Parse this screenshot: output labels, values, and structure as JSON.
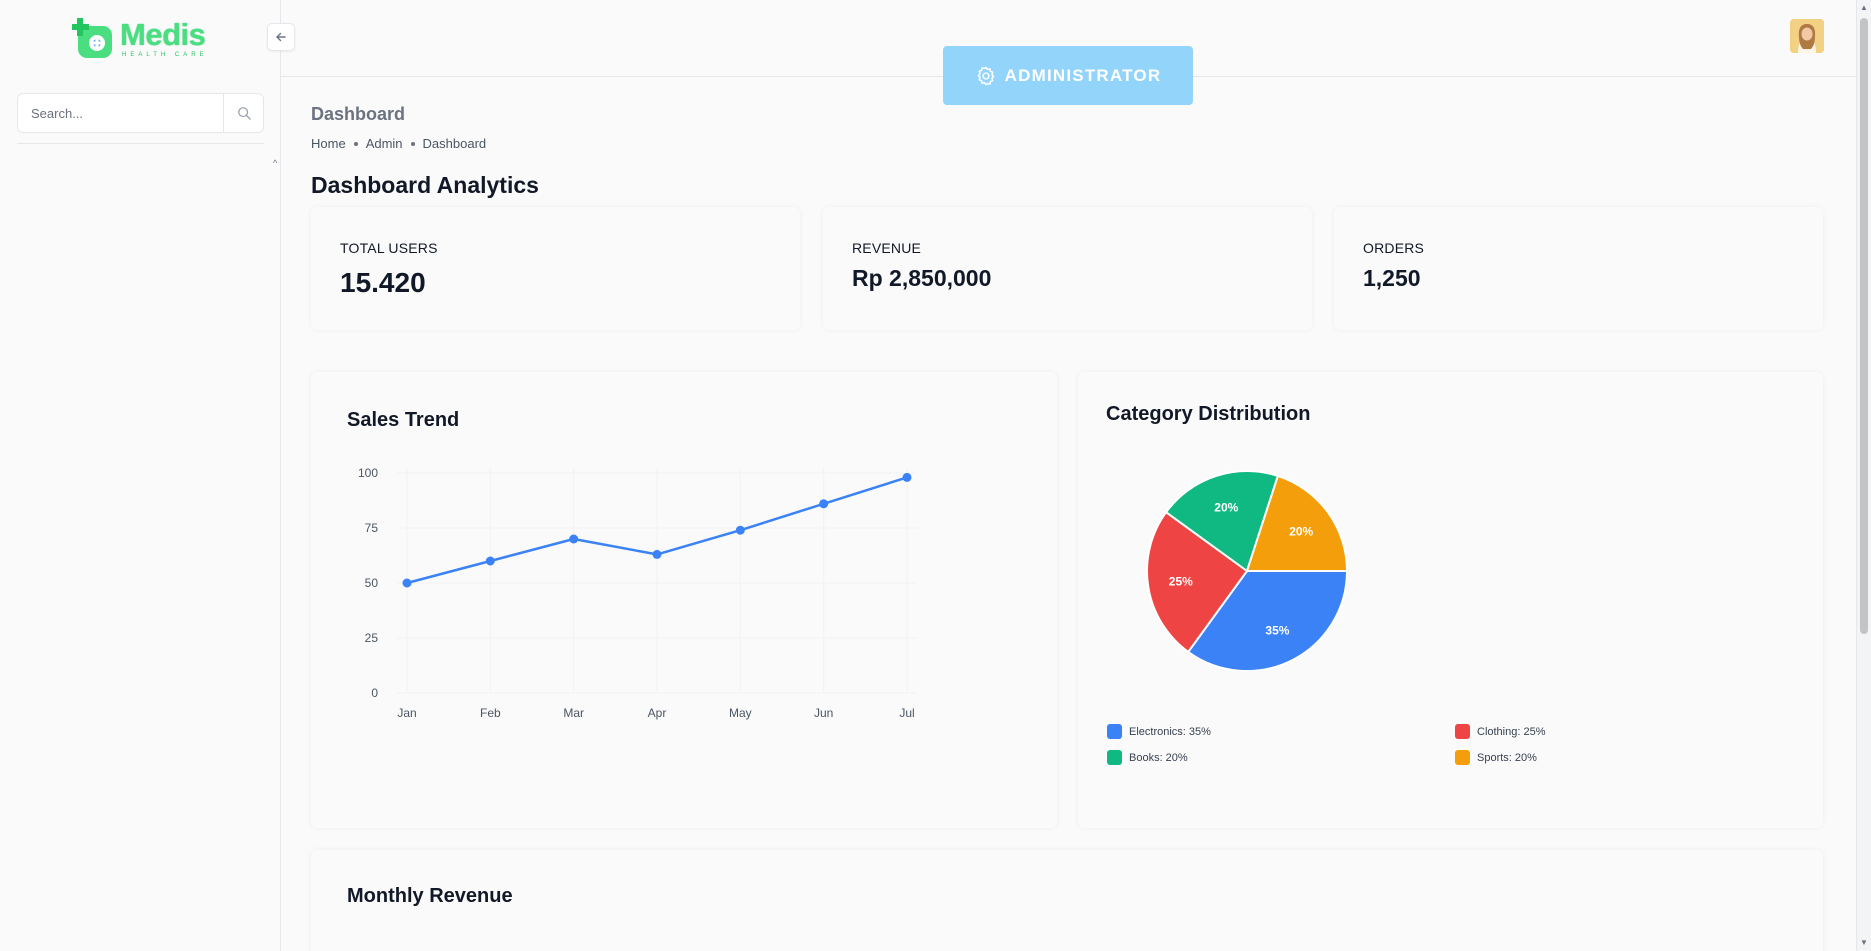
{
  "brand": {
    "name": "Medis",
    "tagline": "HEALTH CARE"
  },
  "sidebar": {
    "search_placeholder": "Search..."
  },
  "header": {
    "role_badge": "ADMINISTRATOR"
  },
  "page": {
    "title": "Dashboard",
    "breadcrumb": [
      "Home",
      "Admin",
      "Dashboard"
    ],
    "heading": "Dashboard Analytics"
  },
  "stats": [
    {
      "label": "TOTAL USERS",
      "value": "15.420"
    },
    {
      "label": "REVENUE",
      "value": "Rp 2,850,000"
    },
    {
      "label": "ORDERS",
      "value": "1,250"
    }
  ],
  "sales_trend": {
    "title": "Sales Trend",
    "chart_data": {
      "type": "line",
      "categories": [
        "Jan",
        "Feb",
        "Mar",
        "Apr",
        "May",
        "Jun",
        "Jul"
      ],
      "values": [
        50,
        60,
        70,
        63,
        74,
        86,
        98
      ],
      "ylim": [
        0,
        100
      ],
      "yticks": [
        0,
        25,
        50,
        75,
        100
      ],
      "color": "#3b82f6"
    }
  },
  "category_distribution": {
    "title": "Category Distribution",
    "chart_data": {
      "type": "pie",
      "slices": [
        {
          "name": "Electronics",
          "value": 35,
          "label": "35%",
          "legend": "Electronics: 35%",
          "color": "#3b82f6"
        },
        {
          "name": "Clothing",
          "value": 25,
          "label": "25%",
          "legend": "Clothing: 25%",
          "color": "#ef4444"
        },
        {
          "name": "Books",
          "value": 20,
          "label": "20%",
          "legend": "Books: 20%",
          "color": "#10b981"
        },
        {
          "name": "Sports",
          "value": 20,
          "label": "20%",
          "legend": "Sports: 20%",
          "color": "#f59e0b"
        }
      ]
    }
  },
  "monthly_revenue": {
    "title": "Monthly Revenue"
  }
}
